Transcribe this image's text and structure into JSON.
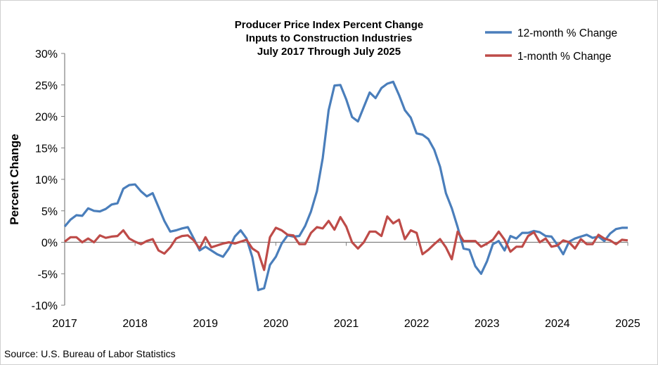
{
  "chart_data": {
    "type": "line",
    "title": [
      "Producer Price Index Percent Change",
      "Inputs to Construction Industries",
      "July 2017 Through July 2025"
    ],
    "ylabel": "Percent Change",
    "xlabel": "",
    "source": "Source: U.S. Bureau of Labor Statistics",
    "ylim": [
      -10,
      30
    ],
    "yticks": [
      -10,
      -5,
      0,
      5,
      10,
      15,
      20,
      25,
      30
    ],
    "ytick_labels": [
      "-10%",
      "-5%",
      "0%",
      "5%",
      "10%",
      "15%",
      "20%",
      "25%",
      "30%"
    ],
    "xtick_labels": [
      "2017",
      "2018",
      "2019",
      "2020",
      "2021",
      "2022",
      "2023",
      "2024",
      "2025"
    ],
    "x_start": "2017-07",
    "x_end": "2025-07",
    "frequency": "monthly",
    "grid": false,
    "legend_position": "top-right",
    "series": [
      {
        "name": "12-month % Change",
        "color": "#4a7ebb",
        "values": [
          2.5,
          3.6,
          4.3,
          4.2,
          5.4,
          5.0,
          4.9,
          5.3,
          6.0,
          6.2,
          8.5,
          9.1,
          9.2,
          8.1,
          7.3,
          7.8,
          5.6,
          3.4,
          1.7,
          1.9,
          2.2,
          2.4,
          0.6,
          -1.3,
          -0.7,
          -1.3,
          -1.9,
          -2.3,
          -1.0,
          0.9,
          1.9,
          0.6,
          -2.4,
          -7.6,
          -7.3,
          -3.6,
          -2.3,
          -0.2,
          1.1,
          0.9,
          1.0,
          2.6,
          4.9,
          8.1,
          13.4,
          21.0,
          24.9,
          25.0,
          22.7,
          19.9,
          19.2,
          21.5,
          23.8,
          22.9,
          24.5,
          25.2,
          25.5,
          23.4,
          21.0,
          19.8,
          17.3,
          17.1,
          16.4,
          14.7,
          12.0,
          7.8,
          5.4,
          2.4,
          -1.0,
          -1.2,
          -3.8,
          -5.0,
          -3.0,
          -0.3,
          0.2,
          -1.3,
          1.0,
          0.6,
          1.5,
          1.5,
          1.8,
          1.6,
          1.0,
          0.9,
          -0.4,
          -1.9,
          0.1,
          0.6,
          0.9,
          1.2,
          0.7,
          0.9,
          0.2,
          1.4,
          2.1,
          2.3,
          2.3
        ]
      },
      {
        "name": "1-month % Change",
        "color": "#be4b48",
        "values": [
          0.1,
          0.8,
          0.8,
          0.0,
          0.6,
          0.0,
          1.1,
          0.7,
          0.9,
          1.0,
          1.9,
          0.6,
          0.1,
          -0.3,
          0.2,
          0.5,
          -1.3,
          -1.8,
          -0.8,
          0.6,
          1.0,
          1.1,
          0.3,
          -1.0,
          0.8,
          -0.8,
          -0.5,
          -0.2,
          0.0,
          -0.2,
          0.1,
          0.4,
          -1.0,
          -1.6,
          -4.4,
          0.8,
          2.3,
          1.9,
          1.2,
          1.1,
          -0.3,
          -0.3,
          1.5,
          2.4,
          2.2,
          3.4,
          2.0,
          4.0,
          2.5,
          0.0,
          -1.0,
          0.0,
          1.7,
          1.7,
          1.0,
          4.1,
          3.0,
          3.6,
          0.5,
          1.9,
          1.5,
          -1.9,
          -1.2,
          -0.3,
          0.5,
          -0.8,
          -2.7,
          1.7,
          0.2,
          0.2,
          0.2,
          -0.7,
          -0.2,
          0.4,
          1.7,
          0.4,
          -1.5,
          -0.7,
          -0.7,
          1.0,
          1.6,
          0.0,
          0.6,
          -0.7,
          -0.5,
          0.3,
          0.0,
          -1.0,
          0.5,
          -0.3,
          -0.3,
          1.2,
          0.6,
          0.3,
          -0.3,
          0.4,
          0.3
        ]
      }
    ]
  }
}
